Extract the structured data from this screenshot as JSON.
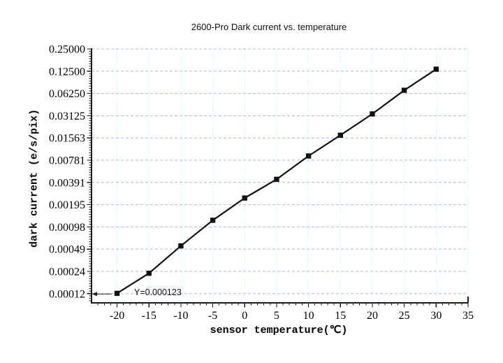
{
  "chart_data": {
    "type": "line",
    "title": "2600-Pro Dark current vs. temperature",
    "xlabel": "sensor temperature(℃)",
    "ylabel": "dark current (e/s/pix)",
    "series_name": "dark current",
    "x": [
      -20,
      -15,
      -10,
      -5,
      0,
      5,
      10,
      15,
      20,
      25,
      30
    ],
    "y": [
      0.000123,
      0.00023,
      0.00054,
      0.0012,
      0.0024,
      0.0043,
      0.0089,
      0.017,
      0.033,
      0.069,
      0.133
    ],
    "x_ticks": [
      -20,
      -15,
      -10,
      -5,
      0,
      5,
      10,
      15,
      20,
      25,
      30,
      35
    ],
    "x_minor_step": 1,
    "xlim": [
      -24,
      35
    ],
    "y_scale": "log2",
    "y_ticks": [
      {
        "label": "0.25000",
        "value": 0.25
      },
      {
        "label": "0.12500",
        "value": 0.125
      },
      {
        "label": "0.06250",
        "value": 0.0625
      },
      {
        "label": "0.03125",
        "value": 0.03125
      },
      {
        "label": "0.01563",
        "value": 0.015625
      },
      {
        "label": "0.00781",
        "value": 0.0078125
      },
      {
        "label": "0.00391",
        "value": 0.00390625
      },
      {
        "label": "0.00195",
        "value": 0.001953125
      },
      {
        "label": "0.00098",
        "value": 0.0009765625
      },
      {
        "label": "0.00049",
        "value": 0.00048828125
      },
      {
        "label": "0.00024",
        "value": 0.000244140625
      },
      {
        "label": "0.00012",
        "value": 0.0001220703125
      }
    ],
    "ylim_top": 0.2555,
    "ylim_bottom": 9.15e-05,
    "grid": true,
    "legend": "none",
    "annotation": {
      "text": "Y=0.000123",
      "points_to_x": -20,
      "points_to_y": 0.000123
    },
    "colors": {
      "background": "#ffffff",
      "line": "#111111",
      "marker": "#111111",
      "axis": "#1a1a1a",
      "grid_horizontal": "#b4b4ee",
      "grid_vertical": "#a9e9ee",
      "annotation_arrow": "#222222"
    }
  }
}
